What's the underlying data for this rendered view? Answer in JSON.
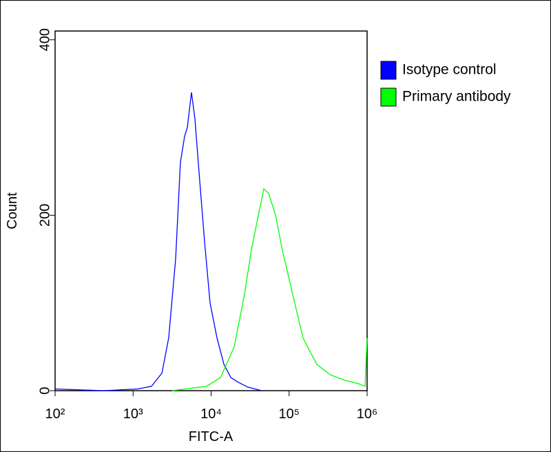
{
  "chart_data": {
    "type": "line",
    "x_label": "FITC-A",
    "y_label": "Count",
    "xscale": "log",
    "xlim": [
      100,
      1000000
    ],
    "ylim": [
      0,
      410
    ],
    "xticks": [
      {
        "value": 100,
        "label": "10²"
      },
      {
        "value": 1000,
        "label": "10³"
      },
      {
        "value": 10000,
        "label": "10⁴"
      },
      {
        "value": 100000,
        "label": "10⁵"
      },
      {
        "value": 1000000,
        "label": "10⁶"
      }
    ],
    "yticks": [
      0,
      200,
      400
    ],
    "legend": "outside-right",
    "series": [
      {
        "name": "Isotype control",
        "color": "#0000ff",
        "x": [
          100,
          415,
          1150,
          1720,
          2340,
          2860,
          3510,
          4040,
          4570,
          4960,
          5600,
          6200,
          7140,
          8240,
          9700,
          11900,
          14600,
          17900,
          21900,
          29700,
          44600
        ],
        "values": [
          2,
          0,
          2,
          5,
          20,
          60,
          150,
          260,
          290,
          300,
          340,
          310,
          240,
          170,
          100,
          60,
          30,
          15,
          10,
          4,
          0
        ]
      },
      {
        "name": "Primary antibody",
        "color": "#00ff00",
        "x": [
          3160,
          8770,
          13200,
          19800,
          26800,
          32800,
          40300,
          47400,
          54600,
          67000,
          82100,
          111000,
          151000,
          226000,
          340000,
          512000,
          768000,
          940000,
          1000000
        ],
        "values": [
          0,
          5,
          15,
          50,
          110,
          160,
          200,
          230,
          225,
          200,
          160,
          110,
          60,
          30,
          18,
          12,
          8,
          5,
          60
        ]
      }
    ]
  }
}
